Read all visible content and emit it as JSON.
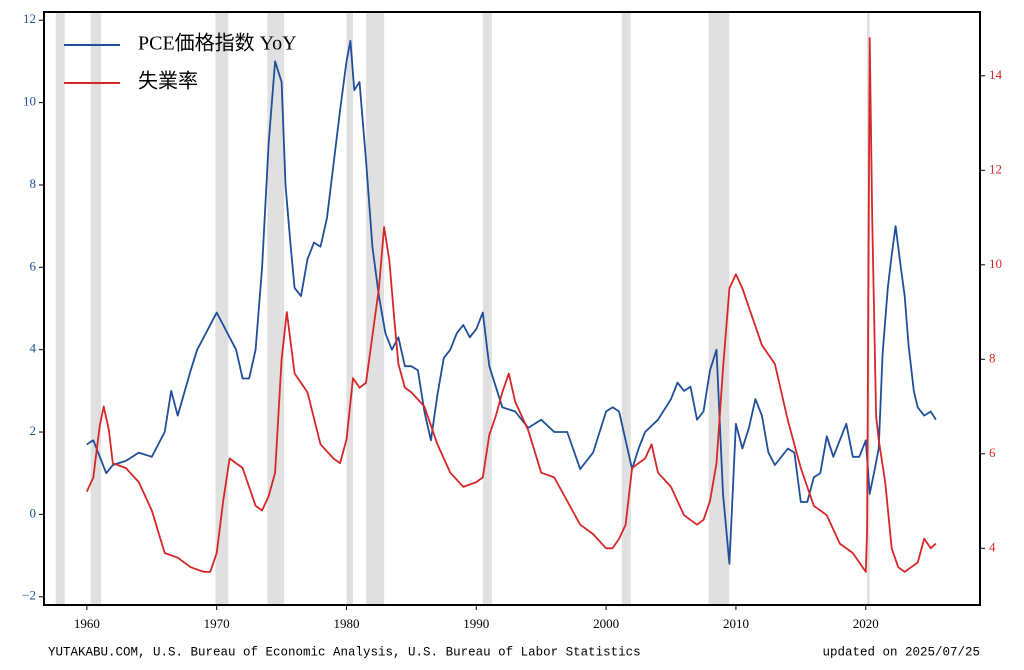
{
  "chart_data": {
    "type": "line",
    "xlim": [
      1956.7,
      2028.8
    ],
    "xticks": [
      1960,
      1970,
      1980,
      1990,
      2000,
      2010,
      2020
    ],
    "ylim": [
      -2.2,
      12.2
    ],
    "yticks": [
      {
        "value": -2,
        "label": "−2"
      },
      0,
      2,
      4,
      6,
      8,
      10,
      12
    ],
    "y2lim": [
      2.8,
      15.35
    ],
    "y2ticks": [
      4,
      6,
      8,
      10,
      12,
      14
    ],
    "y_color": "#1f4e9a",
    "y2_color": "#d62728",
    "legend": "upper left",
    "recession_color": "#e0e0e0",
    "recessions": [
      [
        1957.6,
        1958.3
      ],
      [
        1960.3,
        1961.1
      ],
      [
        1969.9,
        1970.9
      ],
      [
        1973.9,
        1975.2
      ],
      [
        1980.0,
        1980.5
      ],
      [
        1981.5,
        1982.9
      ],
      [
        1990.5,
        1991.2
      ],
      [
        2001.2,
        2001.9
      ],
      [
        2007.9,
        2009.5
      ],
      [
        2020.1,
        2020.3
      ]
    ],
    "series": [
      {
        "name": "PCE価格指数 YoY",
        "color": "#1f4e9a",
        "axis": "y",
        "x": [
          1960,
          1960.5,
          1961,
          1961.5,
          1962,
          1963,
          1964,
          1965,
          1966,
          1966.5,
          1967,
          1968,
          1968.5,
          1969,
          1970,
          1970.5,
          1971,
          1971.5,
          1972,
          1972.5,
          1973,
          1973.5,
          1974,
          1974.5,
          1975,
          1975.3,
          1975.7,
          1976,
          1976.5,
          1977,
          1977.5,
          1978,
          1978.5,
          1979,
          1979.5,
          1980,
          1980.3,
          1980.6,
          1981,
          1981.5,
          1982,
          1982.5,
          1983,
          1983.5,
          1984,
          1984.5,
          1985,
          1985.5,
          1986,
          1986.5,
          1987,
          1987.5,
          1988,
          1988.5,
          1989,
          1989.5,
          1990,
          1990.5,
          1991,
          1991.5,
          1992,
          1993,
          1994,
          1995,
          1996,
          1997,
          1998,
          1999,
          2000,
          2000.5,
          2001,
          2001.5,
          2002,
          2002.5,
          2003,
          2004,
          2005,
          2005.5,
          2006,
          2006.5,
          2007,
          2007.5,
          2008,
          2008.5,
          2009,
          2009.5,
          2010,
          2010.5,
          2011,
          2011.5,
          2012,
          2012.5,
          2013,
          2014,
          2014.5,
          2015,
          2015.5,
          2016,
          2016.5,
          2017,
          2017.5,
          2018,
          2018.5,
          2019,
          2019.5,
          2020,
          2020.3,
          2020.7,
          2021,
          2021.3,
          2021.7,
          2022,
          2022.3,
          2022.7,
          2023,
          2023.3,
          2023.7,
          2024,
          2024.5,
          2025,
          2025.4
        ],
        "values": [
          1.7,
          1.8,
          1.4,
          1.0,
          1.2,
          1.3,
          1.5,
          1.4,
          2.0,
          3.0,
          2.4,
          3.5,
          4.0,
          4.3,
          4.9,
          4.6,
          4.3,
          4.0,
          3.3,
          3.3,
          4.0,
          6.0,
          9.0,
          11.0,
          10.5,
          8.0,
          6.5,
          5.5,
          5.3,
          6.2,
          6.6,
          6.5,
          7.2,
          8.5,
          9.8,
          11.0,
          11.5,
          10.3,
          10.5,
          8.6,
          6.5,
          5.3,
          4.4,
          4.0,
          4.3,
          3.6,
          3.6,
          3.5,
          2.5,
          1.8,
          2.9,
          3.8,
          4.0,
          4.4,
          4.6,
          4.3,
          4.5,
          4.9,
          3.6,
          3.1,
          2.6,
          2.5,
          2.1,
          2.3,
          2.0,
          2.0,
          1.1,
          1.5,
          2.5,
          2.6,
          2.5,
          1.8,
          1.1,
          1.6,
          2.0,
          2.3,
          2.8,
          3.2,
          3.0,
          3.1,
          2.3,
          2.5,
          3.5,
          4.0,
          0.5,
          -1.2,
          2.2,
          1.6,
          2.1,
          2.8,
          2.4,
          1.5,
          1.2,
          1.6,
          1.5,
          0.3,
          0.3,
          0.9,
          1.0,
          1.9,
          1.4,
          1.8,
          2.2,
          1.4,
          1.4,
          1.8,
          0.5,
          1.1,
          1.6,
          3.9,
          5.5,
          6.3,
          7.0,
          6.0,
          5.3,
          4.1,
          3.0,
          2.6,
          2.4,
          2.5,
          2.3
        ]
      },
      {
        "name": "失業率",
        "color": "#d62728",
        "axis": "y2",
        "x": [
          1960,
          1960.5,
          1961,
          1961.3,
          1961.7,
          1962,
          1963,
          1964,
          1965,
          1966,
          1967,
          1968,
          1969,
          1969.5,
          1970,
          1970.5,
          1971,
          1972,
          1973,
          1973.5,
          1974,
          1974.5,
          1975,
          1975.4,
          1976,
          1977,
          1978,
          1979,
          1979.5,
          1980,
          1980.5,
          1981,
          1981.5,
          1982,
          1982.5,
          1982.9,
          1983.3,
          1983.7,
          1984,
          1984.5,
          1985,
          1986,
          1987,
          1988,
          1989,
          1990,
          1990.5,
          1991,
          1991.5,
          1992,
          1992.5,
          1993,
          1994,
          1995,
          1996,
          1997,
          1998,
          1999,
          2000,
          2000.5,
          2001,
          2001.5,
          2002,
          2002.5,
          2003,
          2003.5,
          2004,
          2005,
          2006,
          2007,
          2007.5,
          2008,
          2008.5,
          2009,
          2009.5,
          2010,
          2010.5,
          2011,
          2012,
          2013,
          2014,
          2015,
          2016,
          2017,
          2018,
          2019,
          2020,
          2020.1,
          2020.3,
          2020.5,
          2020.8,
          2021,
          2021.5,
          2022,
          2022.5,
          2023,
          2023.5,
          2024,
          2024.5,
          2025,
          2025.4
        ],
        "values": [
          5.2,
          5.5,
          6.6,
          7.0,
          6.5,
          5.8,
          5.7,
          5.4,
          4.8,
          3.9,
          3.8,
          3.6,
          3.5,
          3.5,
          3.9,
          5.0,
          5.9,
          5.7,
          4.9,
          4.8,
          5.1,
          5.6,
          8.0,
          9.0,
          7.7,
          7.3,
          6.2,
          5.9,
          5.8,
          6.3,
          7.6,
          7.4,
          7.5,
          8.5,
          9.5,
          10.8,
          10.1,
          8.8,
          7.9,
          7.4,
          7.3,
          7.0,
          6.2,
          5.6,
          5.3,
          5.4,
          5.5,
          6.4,
          6.8,
          7.3,
          7.7,
          7.1,
          6.5,
          5.6,
          5.5,
          5.0,
          4.5,
          4.3,
          4.0,
          4.0,
          4.2,
          4.5,
          5.7,
          5.8,
          5.9,
          6.2,
          5.6,
          5.3,
          4.7,
          4.5,
          4.6,
          5.0,
          5.8,
          7.8,
          9.5,
          9.8,
          9.5,
          9.1,
          8.3,
          7.9,
          6.7,
          5.7,
          4.9,
          4.7,
          4.1,
          3.9,
          3.5,
          4.4,
          14.8,
          11.0,
          6.8,
          6.3,
          5.4,
          4.0,
          3.6,
          3.5,
          3.6,
          3.7,
          4.2,
          4.0,
          4.1
        ]
      }
    ],
    "source": "YUTAKABU.COM, U.S. Bureau of Economic Analysis, U.S. Bureau of Labor Statistics",
    "updated": "updated on 2025/07/25"
  }
}
